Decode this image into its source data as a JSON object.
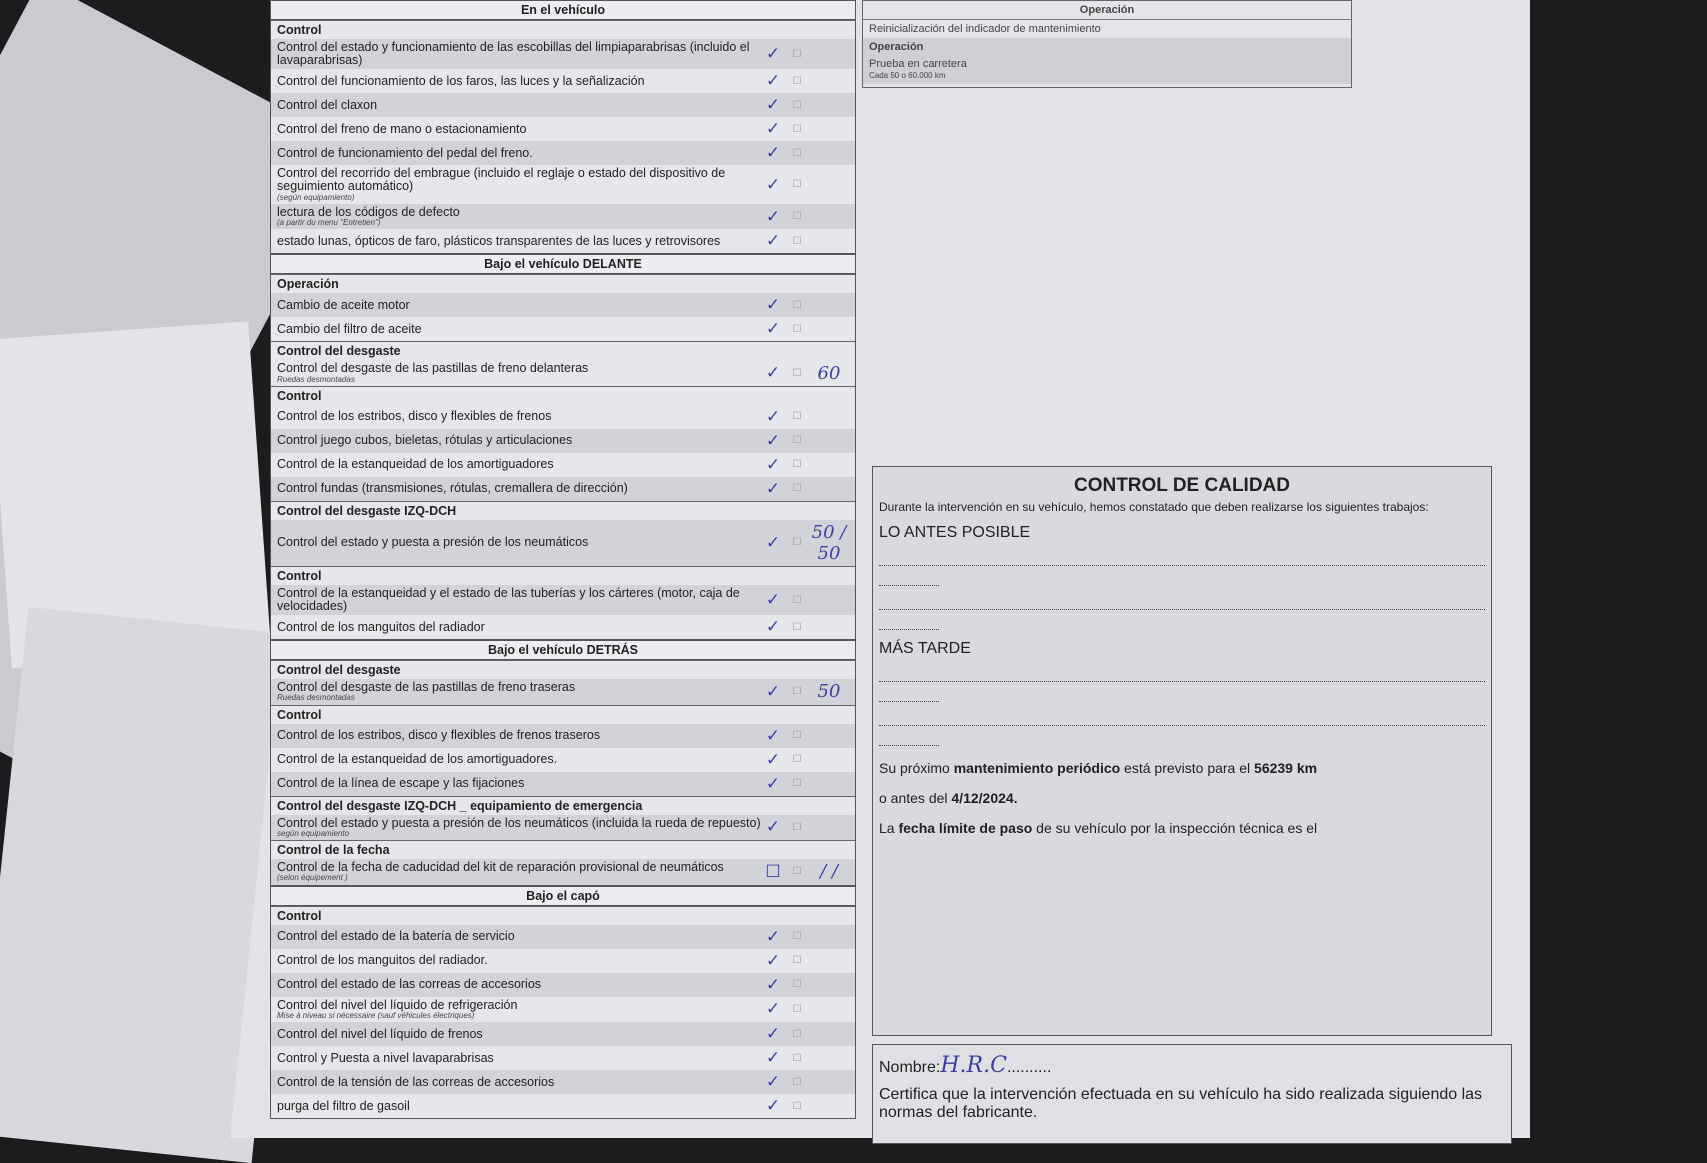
{
  "sections": [
    {
      "title": "En el vehículo",
      "rows": [
        {
          "group": "Control"
        },
        {
          "text": "Control del estado y funcionamiento de las escobillas del limpiaparabrisas (incluido el lavaparabrisas)",
          "status": "ok"
        },
        {
          "text": "Control del funcionamiento de los faros, las luces y la señalización",
          "status": "ok"
        },
        {
          "text": "Control del claxon",
          "status": "ok"
        },
        {
          "text": "Control del freno de mano o estacionamiento",
          "status": "ok"
        },
        {
          "text": "Control de funcionamiento del pedal del freno.",
          "status": "ok"
        },
        {
          "text": "Control del recorrido del embrague (incluido el reglaje o estado del dispositivo de seguimiento automático)",
          "note": "(según equipamiento)",
          "status": "ok"
        },
        {
          "text": "lectura de los códigos de defecto",
          "note": "(a partir du menu \"Entretien\")",
          "status": "ok"
        },
        {
          "text": "estado lunas, ópticos de faro, plásticos transparentes de las luces y retrovisores",
          "status": "ok"
        }
      ]
    },
    {
      "title": "Bajo el vehículo DELANTE",
      "rows": [
        {
          "group": "Operación"
        },
        {
          "text": "Cambio de aceite motor",
          "status": "ok"
        },
        {
          "text": "Cambio del filtro de aceite",
          "status": "ok"
        },
        {
          "group": "Control del desgaste"
        },
        {
          "text": "Control del desgaste de las pastillas de freno delanteras",
          "note": "Ruedas desmontadas",
          "status": "ok",
          "pct": "60"
        },
        {
          "group": "Control"
        },
        {
          "text": "Control de los estribos, disco y flexibles de frenos",
          "status": "ok"
        },
        {
          "text": "Control juego cubos, bieletas, rótulas y articulaciones",
          "status": "ok"
        },
        {
          "text": "Control de la estanqueidad de los amortiguadores",
          "status": "ok"
        },
        {
          "text": "Control fundas (transmisiones, rótulas, cremallera de dirección)",
          "status": "ok"
        },
        {
          "group": "Control del desgaste IZQ-DCH"
        },
        {
          "text": "Control del estado y puesta a presión de los neumáticos",
          "status": "ok",
          "pct": "50 / 50"
        },
        {
          "group": "Control"
        },
        {
          "text": "Control de la estanqueidad y el estado de las tuberías y los cárteres (motor, caja de velocidades)",
          "status": "ok"
        },
        {
          "text": "Control de los manguitos del radiador",
          "status": "ok"
        }
      ]
    },
    {
      "title": "Bajo el vehículo DETRÁS",
      "rows": [
        {
          "group": "Control del desgaste"
        },
        {
          "text": "Control del desgaste de las pastillas de freno traseras",
          "note": "Ruedas desmontadas",
          "status": "ok",
          "pct": "50"
        },
        {
          "group": "Control"
        },
        {
          "text": "Control de los estribos, disco y flexibles de frenos traseros",
          "status": "ok"
        },
        {
          "text": "Control de la estanqueidad de los amortiguadores.",
          "status": "ok"
        },
        {
          "text": "Control de la línea de escape y las fijaciones",
          "status": "ok"
        },
        {
          "group": "Control del desgaste IZQ-DCH _ equipamiento de emergencia"
        },
        {
          "text": "Control del estado y puesta a presión de los neumáticos (incluida la rueda de repuesto)",
          "note": "según equipamiento",
          "status": "ok"
        },
        {
          "group": "Control de la fecha"
        },
        {
          "text": "Control de la fecha de caducidad del kit de reparación provisional de neumáticos",
          "note": "(selon équipement )",
          "status": "",
          "pct": "/ /"
        }
      ]
    },
    {
      "title": "Bajo el capó",
      "rows": [
        {
          "group": "Control"
        },
        {
          "text": "Control del estado de la batería de servicio",
          "status": "ok"
        },
        {
          "text": "Control de los manguitos del radiador.",
          "status": "ok"
        },
        {
          "text": "Control del estado de las correas de accesorios",
          "status": "ok"
        },
        {
          "text": "Control del nivel del líquido de refrigeración",
          "note": "Mise à niveau si nécessaire (sauf véhicules électriques)",
          "status": "ok"
        },
        {
          "text": "Control del nivel del líquido de frenos",
          "status": "ok"
        },
        {
          "text": "Control y Puesta a nivel lavaparabrisas",
          "status": "ok"
        },
        {
          "text": "Control de la tensión de las correas de accesorios",
          "status": "ok"
        },
        {
          "text": "purga del filtro de gasoil",
          "status": "ok"
        }
      ]
    }
  ],
  "right_top": {
    "title": "Operación",
    "row1": "Reinicialización del indicador de mantenimiento",
    "group": "Operación",
    "row2": "Prueba en carretera",
    "row2_note": "Cada 50 o 60.000 km"
  },
  "quality": {
    "title": "CONTROL DE CALIDAD",
    "intro": "Durante la intervención en su vehículo, hemos constatado que deben realizarse los siguientes trabajos:",
    "asap": "LO ANTES POSIBLE",
    "later": "MÁS TARDE",
    "next_pre": "Su próximo ",
    "next_bold": "mantenimiento periódico",
    "next_mid": " está previsto para el ",
    "km": "56239 km",
    "before_pre": "o antes del ",
    "date": "4/12/2024.",
    "itv_bold": "fecha límite de paso",
    "itv_pre": "La ",
    "itv_post": " de su vehículo por la inspección técnica es el"
  },
  "signature": {
    "label": "Nombre:",
    "value": "H.R.C",
    "certify": "Certifica que la intervención efectuada en su vehículo ha sido realizada siguiendo las normas del fabricante."
  },
  "colors": {
    "ink": "#3a3fa8",
    "paper": "#e2e3e7"
  }
}
